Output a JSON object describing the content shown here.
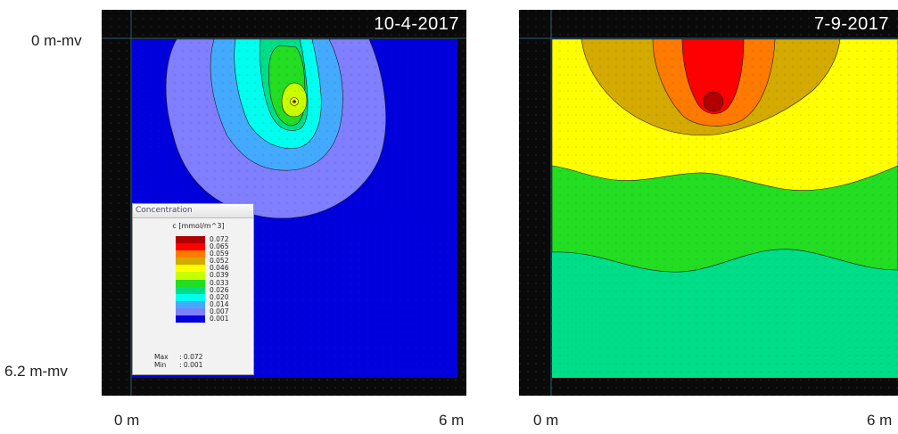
{
  "axes": {
    "y_top": "0 m-mv",
    "y_bottom": "6.2 m-mv",
    "x_left": "0 m",
    "x_right": "6 m"
  },
  "panels": [
    {
      "date": "10-4-2017"
    },
    {
      "date": "7-9-2017"
    }
  ],
  "legend": {
    "title": "Concentration",
    "unit": "c [mmol/m^3]",
    "levels": [
      "0.072",
      "0.065",
      "0.059",
      "0.052",
      "0.046",
      "0.039",
      "0.033",
      "0.026",
      "0.020",
      "0.014",
      "0.007",
      "0.001"
    ],
    "colors": [
      "#b00000",
      "#ff0000",
      "#ff7a00",
      "#d4aa00",
      "#ffff00",
      "#c8ff00",
      "#22dd22",
      "#00dd88",
      "#00ffee",
      "#44aaff",
      "#7f7fff",
      "#0000dd"
    ],
    "max_label": "Max",
    "max_value": ": 0.072",
    "min_label": "Min",
    "min_value": ": 0.001"
  },
  "chart_data": [
    {
      "type": "heatmap",
      "title": "10-4-2017",
      "variable": "c [mmol/m^3]",
      "x_range_m": [
        0,
        6
      ],
      "depth_range_m": [
        0,
        6.2
      ],
      "source_x_m": 3.0,
      "source_depth_m": 1.2,
      "max": 0.072,
      "min": 0.001,
      "color_scale": [
        0.001,
        0.007,
        0.014,
        0.02,
        0.026,
        0.033,
        0.039,
        0.046,
        0.052,
        0.059,
        0.065,
        0.072
      ]
    },
    {
      "type": "heatmap",
      "title": "7-9-2017",
      "variable": "c [mmol/m^3]",
      "x_range_m": [
        0,
        6
      ],
      "depth_range_m": [
        0,
        6.2
      ],
      "source_x_m": 3.0,
      "source_depth_m": 1.2,
      "color_scale": [
        0.001,
        0.007,
        0.014,
        0.02,
        0.026,
        0.033,
        0.039,
        0.046,
        0.052,
        0.059,
        0.065,
        0.072
      ]
    }
  ]
}
